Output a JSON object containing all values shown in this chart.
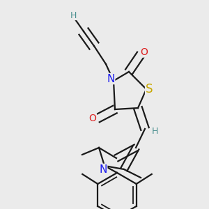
{
  "background_color": "#ebebeb",
  "bond_color": "#1a1a1a",
  "bond_width": 1.6,
  "dbo": 0.012,
  "figsize": [
    3.0,
    3.0
  ],
  "dpi": 100,
  "colors": {
    "H": "#4a9090",
    "O": "#dd2020",
    "N": "#1a1aee",
    "S": "#c8a800",
    "C": "#1a1a1a"
  }
}
